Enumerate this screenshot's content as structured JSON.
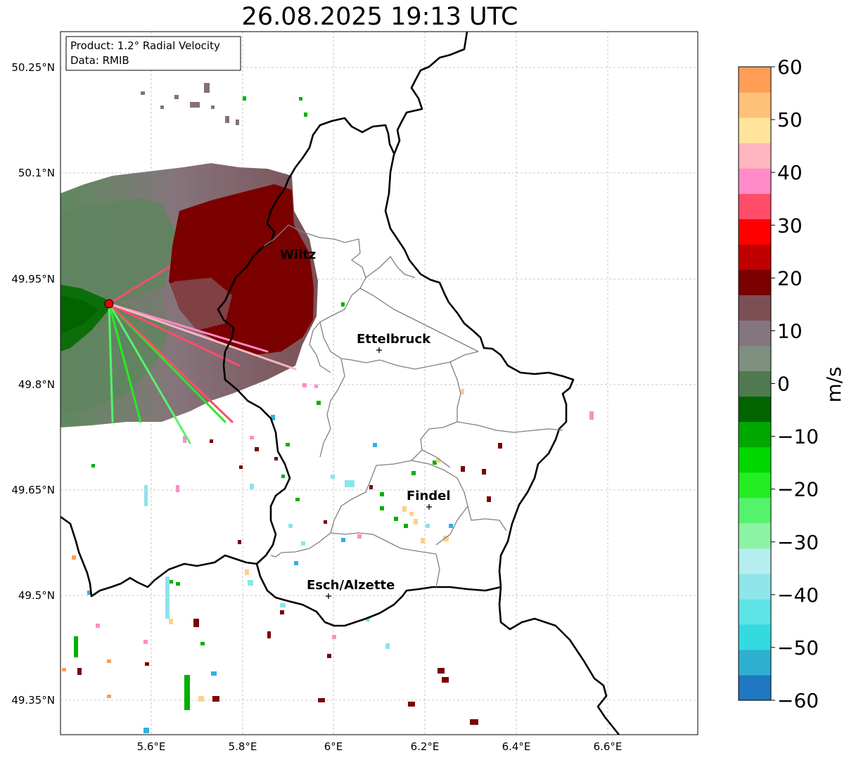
{
  "title": "26.08.2025 19:13 UTC",
  "info": {
    "product": "Product: 1.2° Radial Velocity",
    "source": "Data: RMIB"
  },
  "axes": {
    "lat_ticks": [
      "50.25°N",
      "50.1°N",
      "49.95°N",
      "49.8°N",
      "49.65°N",
      "49.5°N",
      "49.35°N"
    ],
    "lon_ticks": [
      "5.6°E",
      "5.8°E",
      "6°E",
      "6.2°E",
      "6.4°E",
      "6.6°E"
    ]
  },
  "cities": [
    {
      "name": "Wiltz",
      "marker": false
    },
    {
      "name": "Ettelbruck",
      "marker": true
    },
    {
      "name": "Findel",
      "marker": true
    },
    {
      "name": "Esch/Alzette",
      "marker": true
    }
  ],
  "radar_site": {
    "color": "#e8000b"
  },
  "colorbar": {
    "label": "m/s",
    "ticks": [
      "60",
      "50",
      "40",
      "30",
      "20",
      "10",
      "0",
      "−10",
      "−20",
      "−30",
      "−40",
      "−50",
      "−60"
    ],
    "range": [
      -60,
      60
    ],
    "colors": [
      "#1f78c1",
      "#2fb0d0",
      "#33dbe0",
      "#5de4e6",
      "#8fe6ea",
      "#b6eef0",
      "#8cf3a5",
      "#55f36b",
      "#22ee22",
      "#00d800",
      "#00a800",
      "#006400",
      "#4f7a4f",
      "#7f8f7f",
      "#85757e",
      "#7d4f55",
      "#7b0000",
      "#c00000",
      "#ff0000",
      "#ff4d6a",
      "#ff8cc8",
      "#ffb6c1",
      "#ffe49a",
      "#ffc27a",
      "#ff9d55"
    ]
  },
  "colors": {
    "border": "#000000",
    "cantons": "#808080",
    "grid": "#b0b0b0"
  }
}
